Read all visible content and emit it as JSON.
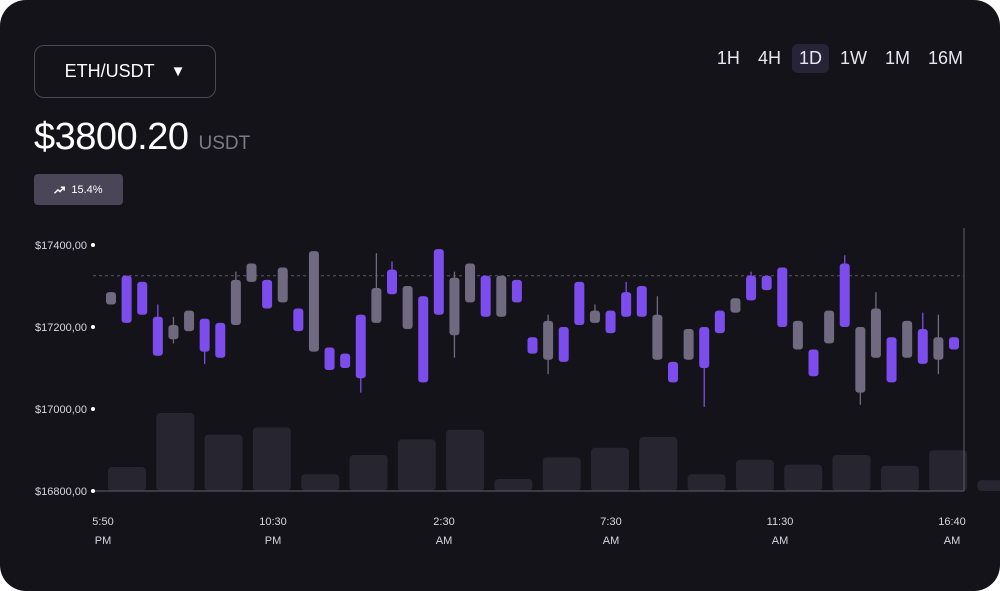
{
  "header": {
    "pair_label": "ETH/USDT",
    "price": "$3800.20",
    "price_unit": "USDT",
    "change": "15.4%",
    "timeframes": [
      "1H",
      "4H",
      "1D",
      "1W",
      "1M",
      "16M"
    ],
    "active_timeframe": "1D"
  },
  "colors": {
    "up": "#7c4dec",
    "down": "#6f6a80",
    "volume": "#262530",
    "background": "#141319",
    "axis": "#55525f"
  },
  "chart_data": {
    "type": "candlestick",
    "ylim": [
      16800,
      17450
    ],
    "yticks": [
      17400,
      17200,
      17000,
      16800
    ],
    "ytick_labels": [
      "$17400,00",
      "$17200,00",
      "$17000,00",
      "$16800,00"
    ],
    "xtick_labels": [
      [
        "5:50",
        "PM"
      ],
      [
        "10:30",
        "PM"
      ],
      [
        "2:30",
        "AM"
      ],
      [
        "7:30",
        "AM"
      ],
      [
        "11:30",
        "AM"
      ],
      [
        "16:40",
        "AM"
      ]
    ],
    "reference_line": 17325,
    "candles": [
      {
        "o": 17255,
        "c": 17285,
        "h": 17285,
        "l": 17255,
        "dir": "down"
      },
      {
        "o": 17325,
        "c": 17210,
        "h": 17325,
        "l": 17210,
        "dir": "up"
      },
      {
        "o": 17310,
        "c": 17230,
        "h": 17310,
        "l": 17230,
        "dir": "up"
      },
      {
        "o": 17225,
        "c": 17130,
        "h": 17255,
        "l": 17130,
        "dir": "up"
      },
      {
        "o": 17170,
        "c": 17205,
        "h": 17225,
        "l": 17160,
        "dir": "down"
      },
      {
        "o": 17190,
        "c": 17240,
        "h": 17240,
        "l": 17190,
        "dir": "down"
      },
      {
        "o": 17220,
        "c": 17140,
        "h": 17220,
        "l": 17110,
        "dir": "up"
      },
      {
        "o": 17210,
        "c": 17125,
        "h": 17210,
        "l": 17125,
        "dir": "up"
      },
      {
        "o": 17205,
        "c": 17315,
        "h": 17335,
        "l": 17205,
        "dir": "down"
      },
      {
        "o": 17310,
        "c": 17355,
        "h": 17355,
        "l": 17310,
        "dir": "down"
      },
      {
        "o": 17315,
        "c": 17245,
        "h": 17315,
        "l": 17245,
        "dir": "up"
      },
      {
        "o": 17260,
        "c": 17345,
        "h": 17345,
        "l": 17260,
        "dir": "down"
      },
      {
        "o": 17245,
        "c": 17190,
        "h": 17245,
        "l": 17190,
        "dir": "up"
      },
      {
        "o": 17140,
        "c": 17385,
        "h": 17385,
        "l": 17140,
        "dir": "down"
      },
      {
        "o": 17150,
        "c": 17095,
        "h": 17150,
        "l": 17095,
        "dir": "up"
      },
      {
        "o": 17135,
        "c": 17100,
        "h": 17135,
        "l": 17100,
        "dir": "up"
      },
      {
        "o": 17230,
        "c": 17075,
        "h": 17230,
        "l": 17040,
        "dir": "up"
      },
      {
        "o": 17210,
        "c": 17295,
        "h": 17380,
        "l": 17210,
        "dir": "down"
      },
      {
        "o": 17340,
        "c": 17280,
        "h": 17360,
        "l": 17280,
        "dir": "up"
      },
      {
        "o": 17300,
        "c": 17195,
        "h": 17300,
        "l": 17195,
        "dir": "down"
      },
      {
        "o": 17275,
        "c": 17065,
        "h": 17275,
        "l": 17065,
        "dir": "up"
      },
      {
        "o": 17390,
        "c": 17230,
        "h": 17390,
        "l": 17230,
        "dir": "up"
      },
      {
        "o": 17180,
        "c": 17320,
        "h": 17335,
        "l": 17125,
        "dir": "down"
      },
      {
        "o": 17260,
        "c": 17355,
        "h": 17355,
        "l": 17260,
        "dir": "down"
      },
      {
        "o": 17325,
        "c": 17225,
        "h": 17325,
        "l": 17225,
        "dir": "up"
      },
      {
        "o": 17225,
        "c": 17325,
        "h": 17325,
        "l": 17225,
        "dir": "down"
      },
      {
        "o": 17315,
        "c": 17260,
        "h": 17315,
        "l": 17260,
        "dir": "up"
      },
      {
        "o": 17175,
        "c": 17135,
        "h": 17175,
        "l": 17135,
        "dir": "up"
      },
      {
        "o": 17120,
        "c": 17215,
        "h": 17230,
        "l": 17085,
        "dir": "down"
      },
      {
        "o": 17200,
        "c": 17115,
        "h": 17200,
        "l": 17115,
        "dir": "up"
      },
      {
        "o": 17310,
        "c": 17205,
        "h": 17310,
        "l": 17205,
        "dir": "up"
      },
      {
        "o": 17240,
        "c": 17210,
        "h": 17255,
        "l": 17210,
        "dir": "down"
      },
      {
        "o": 17240,
        "c": 17185,
        "h": 17240,
        "l": 17185,
        "dir": "up"
      },
      {
        "o": 17285,
        "c": 17225,
        "h": 17310,
        "l": 17225,
        "dir": "up"
      },
      {
        "o": 17300,
        "c": 17225,
        "h": 17300,
        "l": 17225,
        "dir": "up"
      },
      {
        "o": 17120,
        "c": 17230,
        "h": 17275,
        "l": 17120,
        "dir": "down"
      },
      {
        "o": 17115,
        "c": 17065,
        "h": 17115,
        "l": 17065,
        "dir": "up"
      },
      {
        "o": 17120,
        "c": 17195,
        "h": 17195,
        "l": 17120,
        "dir": "down"
      },
      {
        "o": 17200,
        "c": 17100,
        "h": 17200,
        "l": 17005,
        "dir": "up"
      },
      {
        "o": 17240,
        "c": 17185,
        "h": 17240,
        "l": 17185,
        "dir": "up"
      },
      {
        "o": 17235,
        "c": 17270,
        "h": 17270,
        "l": 17235,
        "dir": "down"
      },
      {
        "o": 17325,
        "c": 17265,
        "h": 17335,
        "l": 17265,
        "dir": "up"
      },
      {
        "o": 17325,
        "c": 17290,
        "h": 17325,
        "l": 17290,
        "dir": "up"
      },
      {
        "o": 17345,
        "c": 17200,
        "h": 17345,
        "l": 17200,
        "dir": "up"
      },
      {
        "o": 17145,
        "c": 17215,
        "h": 17215,
        "l": 17145,
        "dir": "down"
      },
      {
        "o": 17145,
        "c": 17080,
        "h": 17145,
        "l": 17080,
        "dir": "up"
      },
      {
        "o": 17160,
        "c": 17240,
        "h": 17240,
        "l": 17160,
        "dir": "down"
      },
      {
        "o": 17355,
        "c": 17200,
        "h": 17375,
        "l": 17200,
        "dir": "up"
      },
      {
        "o": 17040,
        "c": 17200,
        "h": 17200,
        "l": 17010,
        "dir": "down"
      },
      {
        "o": 17125,
        "c": 17245,
        "h": 17285,
        "l": 17125,
        "dir": "down"
      },
      {
        "o": 17175,
        "c": 17065,
        "h": 17175,
        "l": 17065,
        "dir": "up"
      },
      {
        "o": 17125,
        "c": 17215,
        "h": 17215,
        "l": 17125,
        "dir": "down"
      },
      {
        "o": 17110,
        "c": 17195,
        "h": 17235,
        "l": 17110,
        "dir": "up"
      },
      {
        "o": 17120,
        "c": 17175,
        "h": 17230,
        "l": 17085,
        "dir": "down"
      },
      {
        "o": 17175,
        "c": 17145,
        "h": 17175,
        "l": 17145,
        "dir": "up"
      }
    ],
    "volumes": [
      0.2,
      0.65,
      0.47,
      0.53,
      0.14,
      0.3,
      0.43,
      0.51,
      0.1,
      0.28,
      0.36,
      0.45,
      0.14,
      0.26,
      0.22,
      0.3,
      0.21,
      0.34,
      0.09
    ]
  }
}
